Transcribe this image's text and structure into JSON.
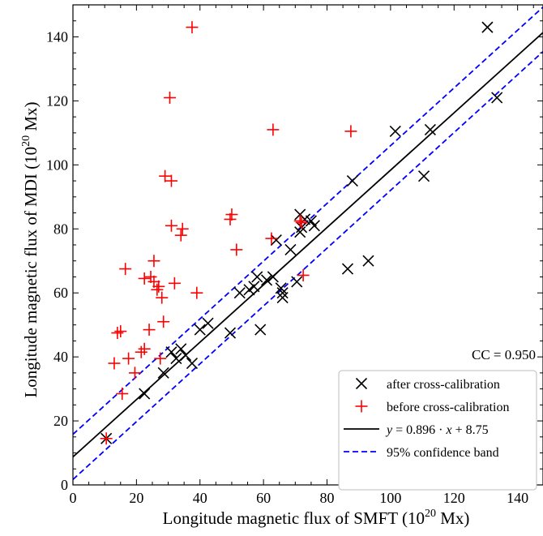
{
  "chart_data": {
    "type": "scatter",
    "title": "",
    "xlabel_prefix": "Longitude magnetic flux of SMFT (10",
    "xlabel_sup": "20",
    "xlabel_suffix": " Mx)",
    "ylabel_prefix": "Longitude magnetic flux of MDI (10",
    "ylabel_sup": "20",
    "ylabel_suffix": " Mx)",
    "xlim": [
      0,
      148
    ],
    "ylim": [
      0,
      150
    ],
    "x_ticks": [
      0,
      20,
      40,
      60,
      80,
      100,
      120,
      140
    ],
    "y_ticks": [
      0,
      20,
      40,
      60,
      80,
      100,
      120,
      140
    ],
    "minor_step": 5,
    "annotation": "CC = 0.950",
    "legend_position": "lower-right",
    "series": [
      {
        "name": "after cross-calibration",
        "marker": "x",
        "color": "#000000",
        "points": [
          [
            10.5,
            14.5
          ],
          [
            22.5,
            28.5
          ],
          [
            28.5,
            35
          ],
          [
            31,
            41.5
          ],
          [
            32.5,
            39.5
          ],
          [
            34,
            42.5
          ],
          [
            35.5,
            40.5
          ],
          [
            37.5,
            38
          ],
          [
            40,
            48.5
          ],
          [
            42.5,
            50.5
          ],
          [
            49.5,
            47.5
          ],
          [
            52.5,
            60
          ],
          [
            55.5,
            61
          ],
          [
            57,
            62
          ],
          [
            58,
            65
          ],
          [
            59,
            48.5
          ],
          [
            61,
            64
          ],
          [
            63,
            65
          ],
          [
            64,
            76.5
          ],
          [
            65.5,
            61.5
          ],
          [
            66,
            58.5
          ],
          [
            66,
            60
          ],
          [
            68.5,
            73.5
          ],
          [
            70.5,
            63.5
          ],
          [
            71.5,
            84.5
          ],
          [
            71.5,
            79
          ],
          [
            72,
            80.5
          ],
          [
            73,
            83
          ],
          [
            75,
            82.5
          ],
          [
            76,
            81
          ],
          [
            86.5,
            67.5
          ],
          [
            88,
            95
          ],
          [
            93,
            70
          ],
          [
            101.5,
            110.5
          ],
          [
            110.5,
            96.5
          ],
          [
            112.5,
            111
          ],
          [
            130.5,
            143
          ],
          [
            133.5,
            121
          ]
        ]
      },
      {
        "name": "before cross-calibration",
        "marker": "+",
        "color": "#ff0000",
        "points": [
          [
            10.5,
            14.5
          ],
          [
            13,
            38
          ],
          [
            14,
            47.5
          ],
          [
            15,
            48
          ],
          [
            15.5,
            28.5
          ],
          [
            16.5,
            67.5
          ],
          [
            17.5,
            39.5
          ],
          [
            19.5,
            35
          ],
          [
            21.5,
            41.5
          ],
          [
            22.5,
            42.5
          ],
          [
            22.5,
            64.5
          ],
          [
            24,
            48.5
          ],
          [
            24.5,
            65
          ],
          [
            25.5,
            70
          ],
          [
            25.5,
            63.5
          ],
          [
            26.5,
            61
          ],
          [
            27,
            62
          ],
          [
            27.5,
            39.5
          ],
          [
            28,
            58.5
          ],
          [
            28.5,
            51
          ],
          [
            29,
            96.5
          ],
          [
            30.5,
            121
          ],
          [
            31,
            95
          ],
          [
            31,
            81
          ],
          [
            32,
            63
          ],
          [
            34,
            78
          ],
          [
            34.5,
            80
          ],
          [
            37.5,
            143
          ],
          [
            39,
            60
          ],
          [
            49.5,
            83
          ],
          [
            50,
            84.5
          ],
          [
            51.5,
            73.5
          ],
          [
            62.5,
            77
          ],
          [
            63,
            111
          ],
          [
            71.5,
            82.5
          ],
          [
            72,
            82
          ],
          [
            72.5,
            65.5
          ],
          [
            87.5,
            110.5
          ]
        ]
      },
      {
        "name": "y = 0.896 · x + 8.75",
        "type": "line",
        "slope": 0.896,
        "intercept": 8.75,
        "color": "#000000",
        "style": "solid"
      },
      {
        "name": "95% confidence band",
        "type": "band",
        "color": "#0000ff",
        "style": "dashed",
        "upper_line": [
          [
            0,
            15.8
          ],
          [
            148,
            149.3
          ]
        ],
        "lower_line": [
          [
            0,
            1.7
          ],
          [
            148,
            135.4
          ]
        ]
      }
    ],
    "legend_labels": {
      "after": "after cross-calibration",
      "before": "before cross-calibration",
      "fit_y": "y",
      "fit_mid": " = 0.896 · ",
      "fit_x": "x",
      "fit_end": " + 8.75",
      "band": "95% confidence band"
    }
  }
}
